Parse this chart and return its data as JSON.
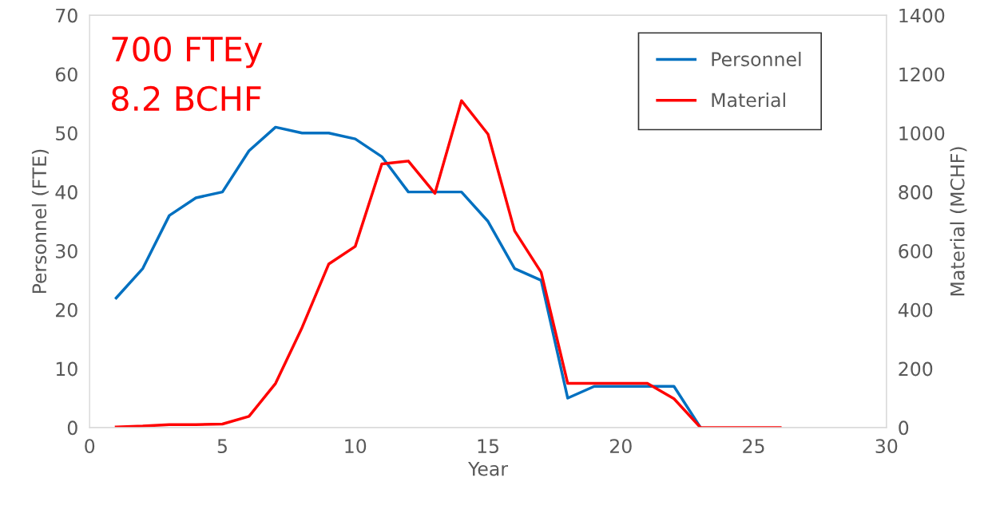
{
  "chart_data": {
    "type": "line",
    "xlabel": "Year",
    "ylabel": "Personnel (FTE)",
    "y2label": "Material (MCHF)",
    "annotations": [
      "700 FTEy",
      "8.2 BCHF"
    ],
    "series": [
      {
        "name": "Personnel",
        "color": "#0070c0",
        "x": [
          1,
          2,
          3,
          4,
          5,
          6,
          7,
          8,
          9,
          10,
          11,
          12,
          13,
          14,
          15,
          16,
          17,
          18,
          19,
          20,
          21,
          22,
          23
        ],
        "values": [
          22,
          27,
          36,
          39,
          40,
          47,
          51,
          50,
          50,
          49,
          46,
          40,
          40,
          40,
          35,
          27,
          25,
          5,
          7,
          7,
          7,
          7,
          0
        ]
      },
      {
        "name": "Material",
        "color": "#ff0000",
        "axis": "y2",
        "x": [
          1,
          2,
          3,
          4,
          5,
          6,
          7,
          8,
          9,
          10,
          11,
          12,
          13,
          14,
          15,
          16,
          17,
          18,
          19,
          20,
          21,
          22,
          23,
          24,
          25,
          26
        ],
        "values": [
          2,
          5,
          10,
          10,
          12,
          38,
          150,
          340,
          555,
          615,
          895,
          905,
          795,
          1110,
          996,
          668,
          527,
          150,
          150,
          150,
          150,
          98,
          0,
          0,
          0,
          0
        ]
      }
    ],
    "xlim": [
      0,
      30
    ],
    "xticks": [
      0,
      5,
      10,
      15,
      20,
      25,
      30
    ],
    "ylim": [
      0,
      70
    ],
    "yticks": [
      0,
      10,
      20,
      30,
      40,
      50,
      60,
      70
    ],
    "y2lim": [
      0,
      1400
    ],
    "y2ticks": [
      0,
      200,
      400,
      600,
      800,
      1000,
      1200,
      1400
    ],
    "grid": false,
    "legend": "top right",
    "marker": "none",
    "line_style": "solid"
  }
}
